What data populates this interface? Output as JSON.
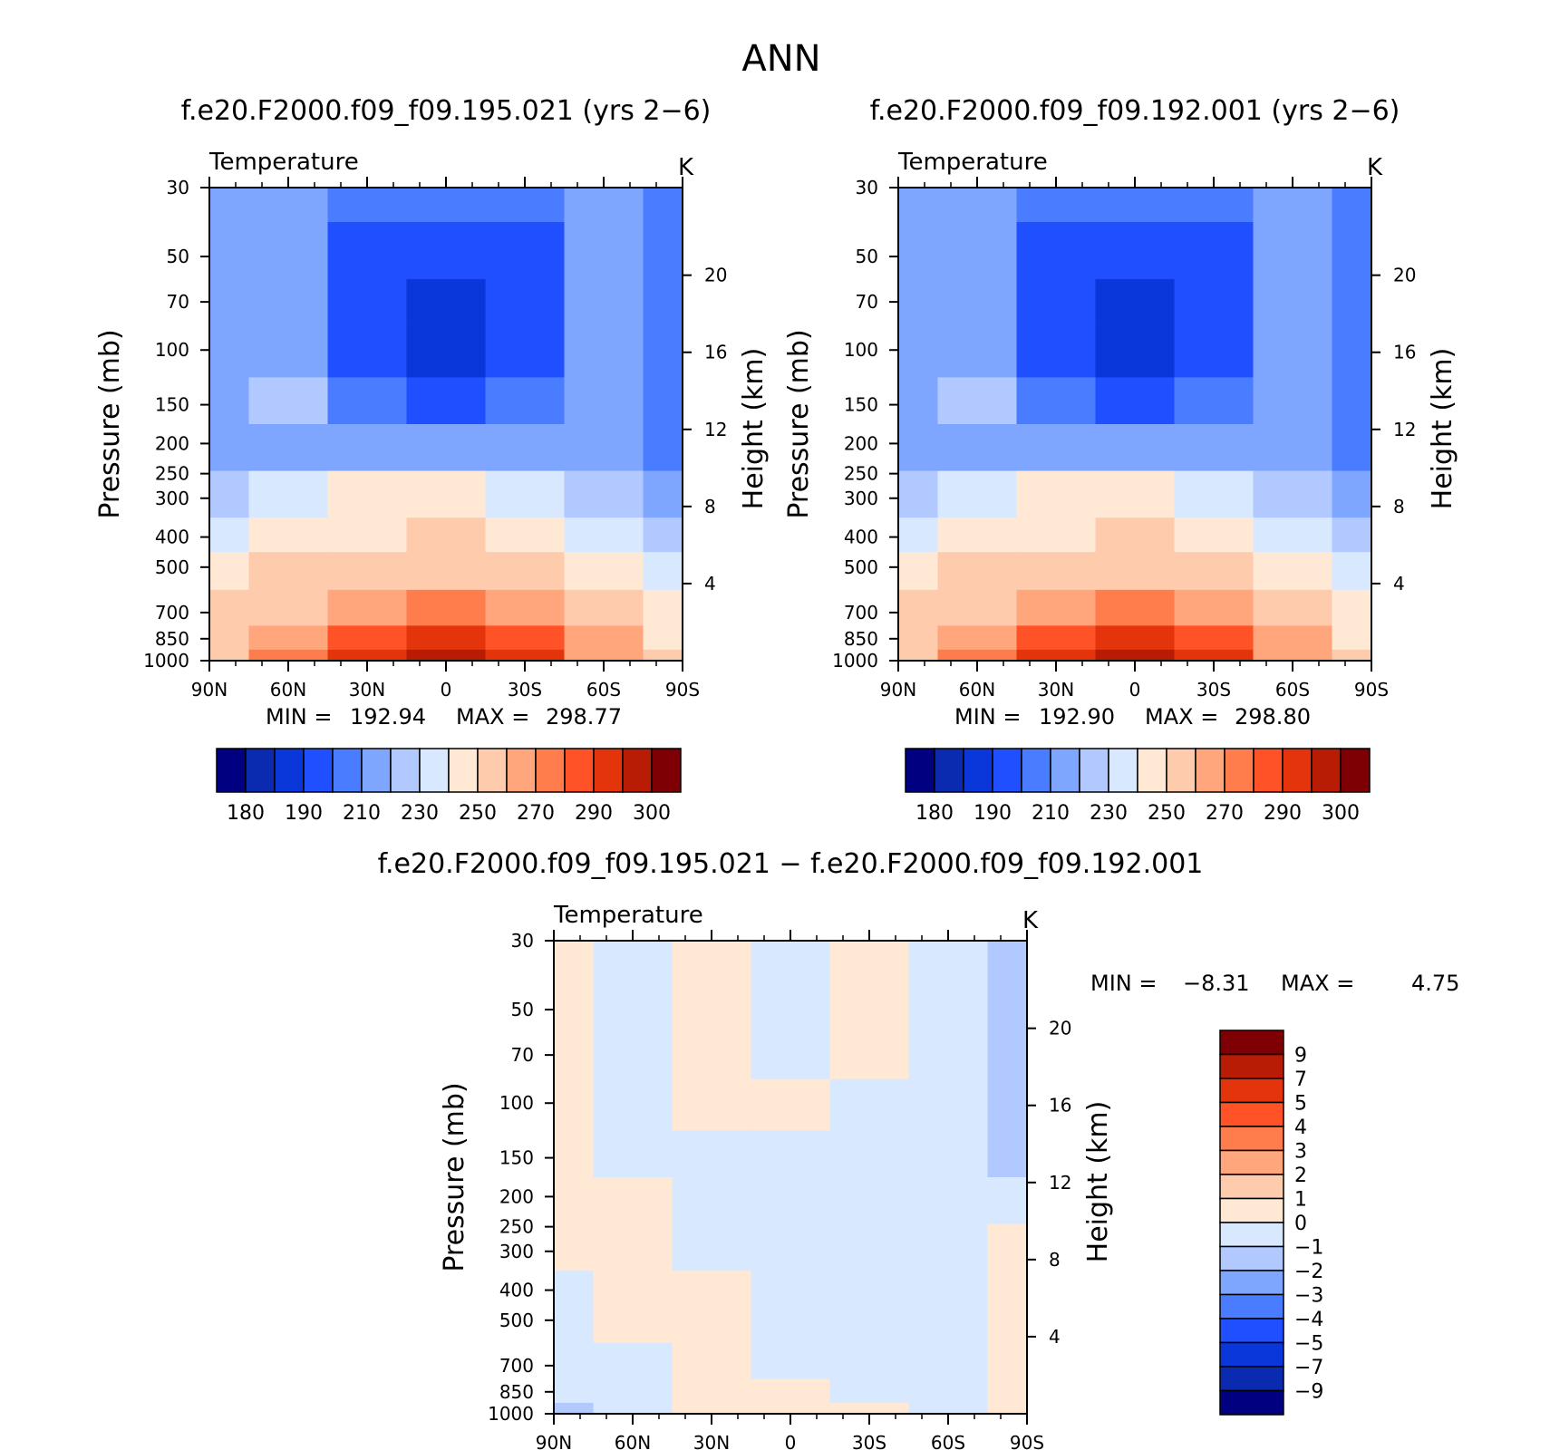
{
  "figure_title": "ANN",
  "panels": [
    {
      "title": "f.e20.F2000.f09_f09.195.021 (yrs 2−6)",
      "variable": "Temperature",
      "units": "K",
      "ylabel_left": "Pressure (mb)",
      "ylabel_right": "Height (km)",
      "min_label": "MIN = ",
      "min_value": "192.94",
      "max_label": "MAX = ",
      "max_value": "298.77"
    },
    {
      "title": "f.e20.F2000.f09_f09.192.001 (yrs 2−6)",
      "variable": "Temperature",
      "units": "K",
      "ylabel_left": "Pressure (mb)",
      "ylabel_right": "Height (km)",
      "min_label": "MIN = ",
      "min_value": "192.90",
      "max_label": "MAX = ",
      "max_value": "298.80"
    },
    {
      "title": "f.e20.F2000.f09_f09.195.021 − f.e20.F2000.f09_f09.192.001",
      "variable": "Temperature",
      "units": "K",
      "ylabel_left": "Pressure (mb)",
      "ylabel_right": "Height (km)",
      "min_label": "MIN = ",
      "min_value": "−8.31",
      "max_label": "MAX = ",
      "max_value": "4.75"
    }
  ],
  "axes": {
    "pressure_ticks": [
      "30",
      "50",
      "70",
      "100",
      "150",
      "200",
      "250",
      "300",
      "400",
      "500",
      "700",
      "850",
      "1000"
    ],
    "height_ticks": [
      "20",
      "16",
      "12",
      "8",
      "4"
    ],
    "lat_ticks": [
      "90N",
      "60N",
      "30N",
      "0",
      "30S",
      "60S",
      "90S"
    ]
  },
  "colorbars": {
    "abs": {
      "colors": [
        "#000080",
        "#0a2bb0",
        "#0a37da",
        "#1f4fff",
        "#4a7cff",
        "#7fa6ff",
        "#b1c9ff",
        "#d8e8ff",
        "#ffe8d4",
        "#ffcbad",
        "#ffa67d",
        "#ff7d4c",
        "#ff5226",
        "#e3340c",
        "#b81c05",
        "#7e0005"
      ],
      "labels": [
        "180",
        "190",
        "210",
        "230",
        "250",
        "270",
        "290",
        "300"
      ]
    },
    "diff": {
      "colors": [
        "#7e0005",
        "#b81c05",
        "#e3340c",
        "#ff5226",
        "#ff7d4c",
        "#ffa67d",
        "#ffcbad",
        "#ffe8d4",
        "#d8e8ff",
        "#b1c9ff",
        "#7fa6ff",
        "#4a7cff",
        "#1f4fff",
        "#0a37da",
        "#0a2bb0",
        "#000080"
      ],
      "labels": [
        "9",
        "7",
        "5",
        "4",
        "3",
        "2",
        "1",
        "0",
        "−1",
        "−2",
        "−3",
        "−4",
        "−5",
        "−7",
        "−9"
      ]
    }
  },
  "chart_data": [
    {
      "type": "heatmap",
      "title": "f.e20.F2000.f09_f09.195.021 (yrs 2−6)",
      "variable": "Temperature",
      "units": "K",
      "x": [
        "90N",
        "60N",
        "30N",
        "0",
        "30S",
        "60S",
        "90S"
      ],
      "y": [
        30,
        50,
        70,
        100,
        150,
        200,
        300,
        400,
        500,
        700,
        850,
        1000
      ],
      "xlabel": "",
      "ylabel": "Pressure (mb)",
      "ylabel_right": "Height (km)",
      "y_scale": "log",
      "y_inverted": true,
      "z": [
        [
          228,
          223,
          216,
          214,
          216,
          223,
          213
        ],
        [
          226,
          222,
          206,
          200,
          205,
          222,
          213
        ],
        [
          225,
          222,
          205,
          198,
          204,
          222,
          213
        ],
        [
          224,
          229,
          206,
          198,
          204,
          221,
          213
        ],
        [
          225,
          230,
          216,
          206,
          215,
          221,
          212
        ],
        [
          225,
          223,
          224,
          224,
          224,
          221,
          213
        ],
        [
          235,
          243,
          250,
          250,
          248,
          236,
          222
        ],
        [
          245,
          253,
          259,
          260,
          258,
          247,
          232
        ],
        [
          253,
          260,
          266,
          268,
          265,
          255,
          240
        ],
        [
          262,
          269,
          278,
          281,
          277,
          266,
          253
        ],
        [
          265,
          274,
          287,
          290,
          285,
          272,
          257
        ],
        [
          268,
          281,
          292,
          297,
          292,
          272,
          260
        ]
      ],
      "min": 192.94,
      "max": 298.77
    },
    {
      "type": "heatmap",
      "title": "f.e20.F2000.f09_f09.192.001 (yrs 2−6)",
      "variable": "Temperature",
      "units": "K",
      "x": [
        "90N",
        "60N",
        "30N",
        "0",
        "30S",
        "60S",
        "90S"
      ],
      "y": [
        30,
        50,
        70,
        100,
        150,
        200,
        300,
        400,
        500,
        700,
        850,
        1000
      ],
      "xlabel": "",
      "ylabel": "Pressure (mb)",
      "ylabel_right": "Height (km)",
      "y_scale": "log",
      "y_inverted": true,
      "z": [
        [
          228,
          223,
          216,
          214,
          216,
          223,
          213
        ],
        [
          226,
          222,
          206,
          200,
          205,
          222,
          213
        ],
        [
          225,
          222,
          205,
          198,
          204,
          222,
          213
        ],
        [
          224,
          229,
          206,
          198,
          204,
          221,
          213
        ],
        [
          225,
          230,
          216,
          206,
          215,
          221,
          212
        ],
        [
          225,
          223,
          224,
          224,
          224,
          221,
          213
        ],
        [
          235,
          243,
          250,
          250,
          248,
          236,
          222
        ],
        [
          245,
          253,
          259,
          260,
          258,
          247,
          232
        ],
        [
          253,
          260,
          266,
          268,
          265,
          255,
          240
        ],
        [
          262,
          269,
          278,
          281,
          277,
          266,
          253
        ],
        [
          265,
          274,
          287,
          290,
          285,
          272,
          257
        ],
        [
          268,
          281,
          292,
          297,
          292,
          272,
          260
        ]
      ],
      "min": 192.9,
      "max": 298.8
    },
    {
      "type": "heatmap",
      "title": "f.e20.F2000.f09_f09.195.021 − f.e20.F2000.f09_f09.192.001",
      "variable": "Temperature",
      "units": "K",
      "x": [
        "90N",
        "60N",
        "30N",
        "0",
        "30S",
        "60S",
        "90S"
      ],
      "y": [
        30,
        50,
        70,
        100,
        150,
        200,
        300,
        400,
        500,
        700,
        850,
        1000
      ],
      "xlabel": "",
      "ylabel": "Pressure (mb)",
      "ylabel_right": "Height (km)",
      "y_scale": "log",
      "y_inverted": true,
      "z": [
        [
          0.3,
          -0.3,
          0.4,
          -0.4,
          0.5,
          -0.3,
          -1.2
        ],
        [
          0.3,
          -0.3,
          0.3,
          -0.4,
          0.4,
          -0.3,
          -1.3
        ],
        [
          0.3,
          -0.2,
          0.3,
          -0.3,
          0.3,
          -0.4,
          -1.3
        ],
        [
          0.3,
          -0.2,
          0.3,
          0.2,
          -0.3,
          -0.4,
          -1.2
        ],
        [
          0.3,
          -0.2,
          -0.3,
          -0.3,
          -0.3,
          -0.4,
          -1.1
        ],
        [
          0.2,
          0.3,
          -0.3,
          -0.3,
          -0.3,
          -0.4,
          -0.5
        ],
        [
          0.3,
          0.3,
          -0.2,
          -0.3,
          -0.3,
          -0.4,
          0.3
        ],
        [
          -0.3,
          0.3,
          0.3,
          -0.3,
          -0.3,
          -0.4,
          0.3
        ],
        [
          -0.3,
          0.2,
          0.3,
          -0.3,
          -0.2,
          -0.3,
          0.3
        ],
        [
          -0.3,
          -0.2,
          0.3,
          -0.3,
          -0.2,
          -0.3,
          0.3
        ],
        [
          -0.5,
          -0.2,
          0.3,
          0.2,
          -0.3,
          -0.3,
          0.3
        ],
        [
          -1.3,
          -0.3,
          0.3,
          0.3,
          0.3,
          -0.3,
          0.3
        ]
      ],
      "min": -8.31,
      "max": 4.75
    }
  ]
}
